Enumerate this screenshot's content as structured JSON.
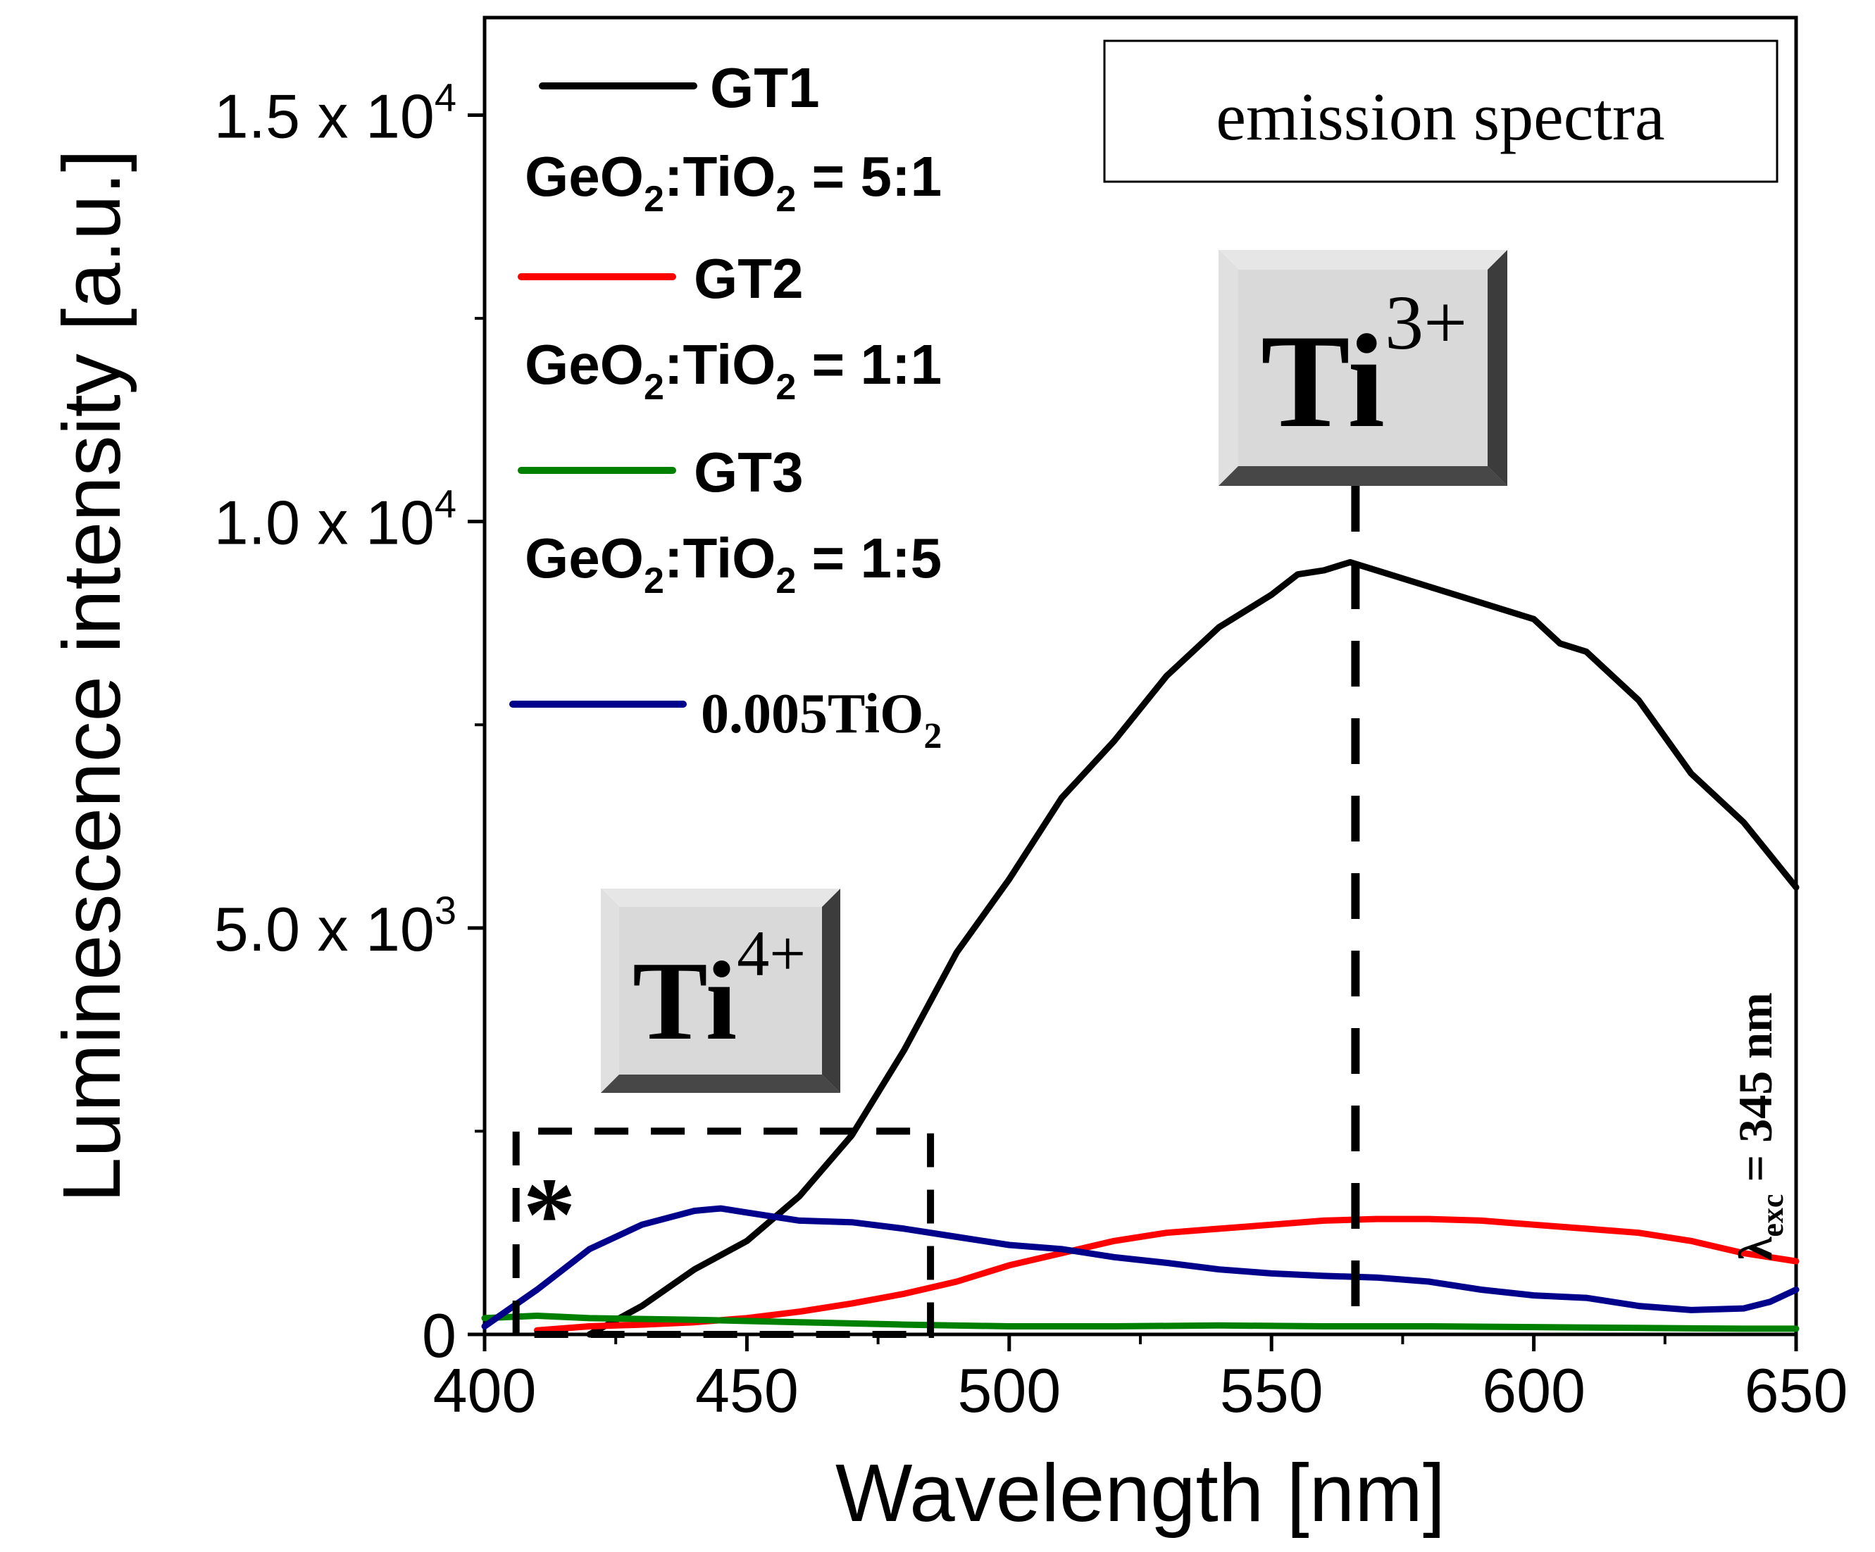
{
  "chart_data": {
    "type": "line",
    "title": "emission spectra",
    "xlabel": "Wavelength [nm]",
    "ylabel": "Luminescence intensity [a.u.]",
    "xlim": [
      400,
      650
    ],
    "ylim": [
      0,
      16200
    ],
    "x_ticks": [
      400,
      450,
      500,
      550,
      600,
      650
    ],
    "y_ticks": [
      {
        "value": 0,
        "mantissa": "0",
        "exponent": ""
      },
      {
        "value": 5000,
        "mantissa": "5.0 x 10",
        "exponent": "3"
      },
      {
        "value": 10000,
        "mantissa": "1.0 x 10",
        "exponent": "4"
      },
      {
        "value": 15000,
        "mantissa": "1.5 x 10",
        "exponent": "4"
      }
    ],
    "series": [
      {
        "name": "GT1",
        "ratio": "GeO2:TiO2 = 5:1",
        "color": "#000000",
        "x": [
          420,
          430,
          440,
          450,
          460,
          470,
          480,
          490,
          500,
          510,
          520,
          530,
          540,
          550,
          555,
          560,
          565,
          570,
          580,
          590,
          600,
          605,
          610,
          620,
          630,
          640,
          645,
          650
        ],
        "y": [
          0,
          350,
          800,
          1150,
          1700,
          2450,
          3500,
          4700,
          5600,
          6600,
          7300,
          8100,
          8700,
          9100,
          9350,
          9400,
          9500,
          9400,
          9200,
          9000,
          8800,
          8500,
          8400,
          7800,
          6900,
          6300,
          5900,
          5500
        ]
      },
      {
        "name": "GT2",
        "ratio": "GeO2:TiO2 = 1:1",
        "color": "#ff0000",
        "x": [
          410,
          420,
          430,
          440,
          450,
          460,
          470,
          480,
          490,
          500,
          510,
          520,
          530,
          540,
          550,
          560,
          570,
          580,
          590,
          600,
          610,
          620,
          630,
          640,
          650
        ],
        "y": [
          50,
          100,
          120,
          150,
          200,
          280,
          380,
          500,
          650,
          850,
          1000,
          1150,
          1250,
          1300,
          1350,
          1400,
          1420,
          1420,
          1400,
          1350,
          1300,
          1250,
          1150,
          1000,
          900
        ]
      },
      {
        "name": "GT3",
        "ratio": "GeO2:TiO2 = 1:5",
        "color": "#008000",
        "x": [
          400,
          410,
          420,
          440,
          460,
          480,
          500,
          520,
          540,
          560,
          580,
          600,
          620,
          640,
          650
        ],
        "y": [
          200,
          230,
          200,
          180,
          150,
          120,
          100,
          100,
          110,
          100,
          100,
          90,
          80,
          70,
          70
        ]
      },
      {
        "name": "0.005TiO2",
        "ratio": "",
        "color": "#00008b",
        "x": [
          400,
          410,
          420,
          430,
          440,
          445,
          450,
          460,
          470,
          480,
          490,
          500,
          510,
          520,
          530,
          540,
          550,
          560,
          570,
          580,
          590,
          600,
          610,
          620,
          630,
          640,
          645,
          650
        ],
        "y": [
          100,
          550,
          1050,
          1350,
          1520,
          1550,
          1500,
          1400,
          1380,
          1300,
          1200,
          1100,
          1050,
          950,
          880,
          800,
          750,
          720,
          700,
          650,
          550,
          480,
          450,
          350,
          300,
          320,
          400,
          550
        ]
      }
    ],
    "annotations": {
      "ti3_label": "Ti",
      "ti3_charge": "3+",
      "ti3_wavelength": 566,
      "ti4_label": "Ti",
      "ti4_charge": "4+",
      "asterisk": "*",
      "excitation_symbol": "λ",
      "excitation_subscript": "exc",
      "excitation_value": " = 345 nm",
      "dashed_region": {
        "x_start": 406,
        "x_end": 485,
        "y_top": 2500
      }
    },
    "legend_placement": "top-left",
    "title_placement": "top-right"
  }
}
